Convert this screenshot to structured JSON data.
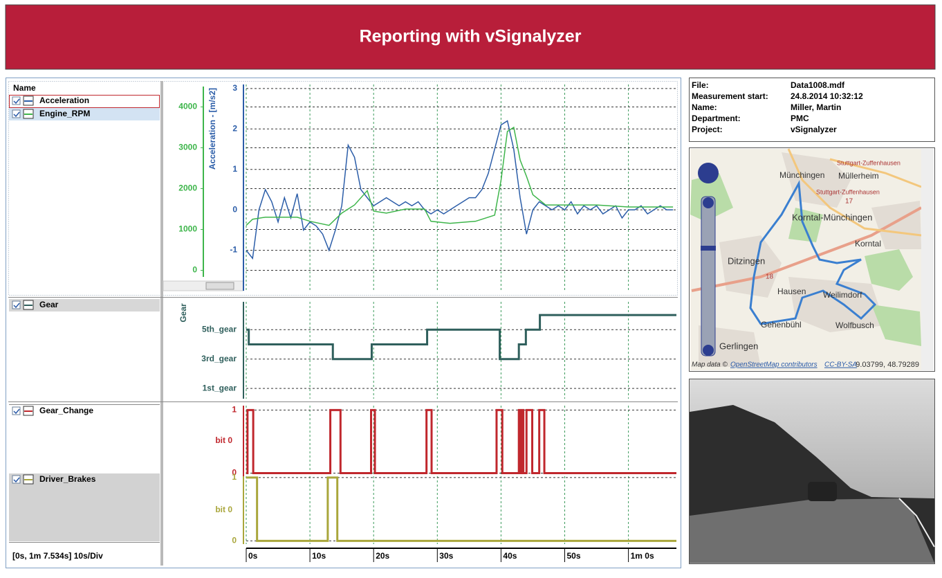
{
  "header": {
    "title": "Reporting with vSignalyzer"
  },
  "signal_panel": {
    "column_header": "Name",
    "status": "[0s, 1m 7.534s] 10s/Div"
  },
  "chart_data": [
    {
      "type": "line",
      "ylabel": "Acceleration - [m/s2]",
      "xlim": [
        0,
        67.534
      ],
      "xticks": [
        0,
        10,
        20,
        30,
        40,
        50,
        60
      ],
      "ylim": [
        -2,
        3.1
      ],
      "yticks": [
        -1,
        0,
        1,
        2,
        3
      ],
      "y2lim": [
        -500,
        4550
      ],
      "y2ticks": [
        0,
        1000,
        2000,
        3000,
        4000
      ],
      "grid": true,
      "series": [
        {
          "name": "Acceleration",
          "color": "#2b5da8",
          "x": [
            0,
            1,
            2,
            3,
            4,
            5,
            6,
            7,
            8,
            9,
            10,
            11,
            12,
            13,
            14,
            15,
            16,
            17,
            18,
            19,
            20,
            21,
            22,
            23,
            24,
            25,
            26,
            27,
            28,
            29,
            30,
            31,
            32,
            33,
            34,
            35,
            36,
            37,
            38,
            39,
            40,
            41,
            42,
            43,
            44,
            45,
            46,
            47,
            48,
            49,
            50,
            51,
            52,
            53,
            54,
            55,
            56,
            57,
            58,
            59,
            60,
            61,
            62,
            63,
            64,
            65,
            66,
            67
          ],
          "values": [
            -1,
            -1.2,
            0,
            0.5,
            0.2,
            -0.3,
            0.3,
            -0.2,
            0.4,
            -0.5,
            -0.3,
            -0.4,
            -0.6,
            -1,
            -0.5,
            0.1,
            1.6,
            1.3,
            0.5,
            0.3,
            0.1,
            0.2,
            0.3,
            0.2,
            0.1,
            0.2,
            0.1,
            0.2,
            0,
            -0.1,
            0,
            -0.1,
            0,
            0.1,
            0.2,
            0.3,
            0.3,
            0.5,
            0.9,
            1.5,
            2.1,
            2.2,
            1.5,
            0.3,
            -0.6,
            0,
            0.2,
            0.1,
            0,
            0.1,
            0,
            0.2,
            -0.1,
            0.1,
            0,
            0.1,
            -0.1,
            0,
            0.1,
            -0.2,
            0,
            0,
            0.1,
            -0.1,
            0,
            0.1,
            0,
            0
          ]
        },
        {
          "name": "Engine_RPM",
          "color": "#3db54a",
          "axis": "y2",
          "x": [
            0,
            1,
            3,
            8,
            10,
            13,
            15,
            17,
            19,
            20,
            22,
            25,
            28,
            29,
            32,
            36,
            39,
            40,
            41,
            42,
            43,
            44,
            45,
            47,
            50,
            55,
            60,
            67
          ],
          "values": [
            1100,
            1250,
            1300,
            1300,
            1200,
            1100,
            1400,
            1600,
            1950,
            1450,
            1400,
            1500,
            1500,
            1200,
            1150,
            1200,
            1350,
            2200,
            3400,
            3500,
            2700,
            2300,
            1850,
            1600,
            1600,
            1600,
            1550,
            1550
          ]
        }
      ]
    },
    {
      "type": "step",
      "ylabel": "Gear",
      "xlim": [
        0,
        67.534
      ],
      "xticks": [
        0,
        10,
        20,
        30,
        40,
        50,
        60
      ],
      "ylim": [
        0.3,
        6.9
      ],
      "yticks": [
        {
          "value": 1,
          "label": "1st_gear"
        },
        {
          "value": 3,
          "label": "3rd_gear"
        },
        {
          "value": 5,
          "label": "5th_gear"
        }
      ],
      "grid": true,
      "series": [
        {
          "name": "Gear",
          "color": "#2f5f5c",
          "x": [
            0,
            0.4,
            13.6,
            19.7,
            28.4,
            39.8,
            42.8,
            43.9,
            46.1
          ],
          "values": [
            5,
            4,
            3,
            4,
            5,
            3,
            4,
            5,
            6
          ]
        }
      ]
    },
    {
      "type": "step",
      "ylabel": "bit 0",
      "xlim": [
        0,
        67.534
      ],
      "xticks": [
        0,
        10,
        20,
        30,
        40,
        50,
        60
      ],
      "ylim": [
        -0.05,
        1.07
      ],
      "yticks": [
        0,
        1
      ],
      "grid": true,
      "series": [
        {
          "name": "Gear_Change",
          "color": "#c0272d",
          "x": [
            0,
            0.2,
            1.1,
            13.2,
            14.8,
            19.6,
            20.2,
            28.3,
            29.1,
            39.3,
            40.2,
            42.8,
            43.0,
            43.3,
            43.5,
            44.0,
            44.9,
            46.0,
            46.8
          ],
          "values": [
            0,
            1,
            0,
            1,
            0,
            1,
            0,
            1,
            0,
            1,
            0,
            1,
            0,
            1,
            0,
            1,
            0,
            1,
            0
          ]
        }
      ]
    },
    {
      "type": "step",
      "ylabel": "bit 0",
      "xlim": [
        0,
        67.534
      ],
      "xticks": [
        {
          "value": 0,
          "label": "0s"
        },
        {
          "value": 10,
          "label": "10s"
        },
        {
          "value": 20,
          "label": "20s"
        },
        {
          "value": 30,
          "label": "30s"
        },
        {
          "value": 40,
          "label": "40s"
        },
        {
          "value": 50,
          "label": "50s"
        },
        {
          "value": 60,
          "label": "1m 0s"
        }
      ],
      "ylim": [
        -0.05,
        1.02
      ],
      "yticks": [
        0,
        1
      ],
      "grid": true,
      "series": [
        {
          "name": "Driver_Brakes",
          "color": "#a9a63b",
          "x": [
            0,
            1.7,
            12.8,
            14.3
          ],
          "values": [
            1,
            0,
            1,
            0
          ]
        }
      ]
    }
  ],
  "info": {
    "rows": [
      [
        "File:",
        "Data1008.mdf"
      ],
      [
        "Measurement start:",
        "24.8.2014 10:32:12"
      ],
      [
        "Name:",
        "Miller, Martin"
      ],
      [
        "Department:",
        "PMC"
      ],
      [
        "Project:",
        "vSignalyzer"
      ]
    ]
  },
  "map": {
    "labels": [
      "Münchingen",
      "Müllerheim",
      "Stuttgart-Zuffenhausen",
      "Stuttgart-Zuffenhausen",
      "Korntal-Münchingen",
      "Korntal",
      "Ditzingen",
      "Hausen",
      "Weilimdorf",
      "Gehenbühl",
      "Wolfbusch",
      "Gerlingen",
      "18",
      "17"
    ],
    "attribution": "Map data ©",
    "attribution_link1": "OpenStreetMap contributors",
    "attribution_link2": "CC-BY-SA",
    "coordinates": "9.03799, 48.79289"
  }
}
